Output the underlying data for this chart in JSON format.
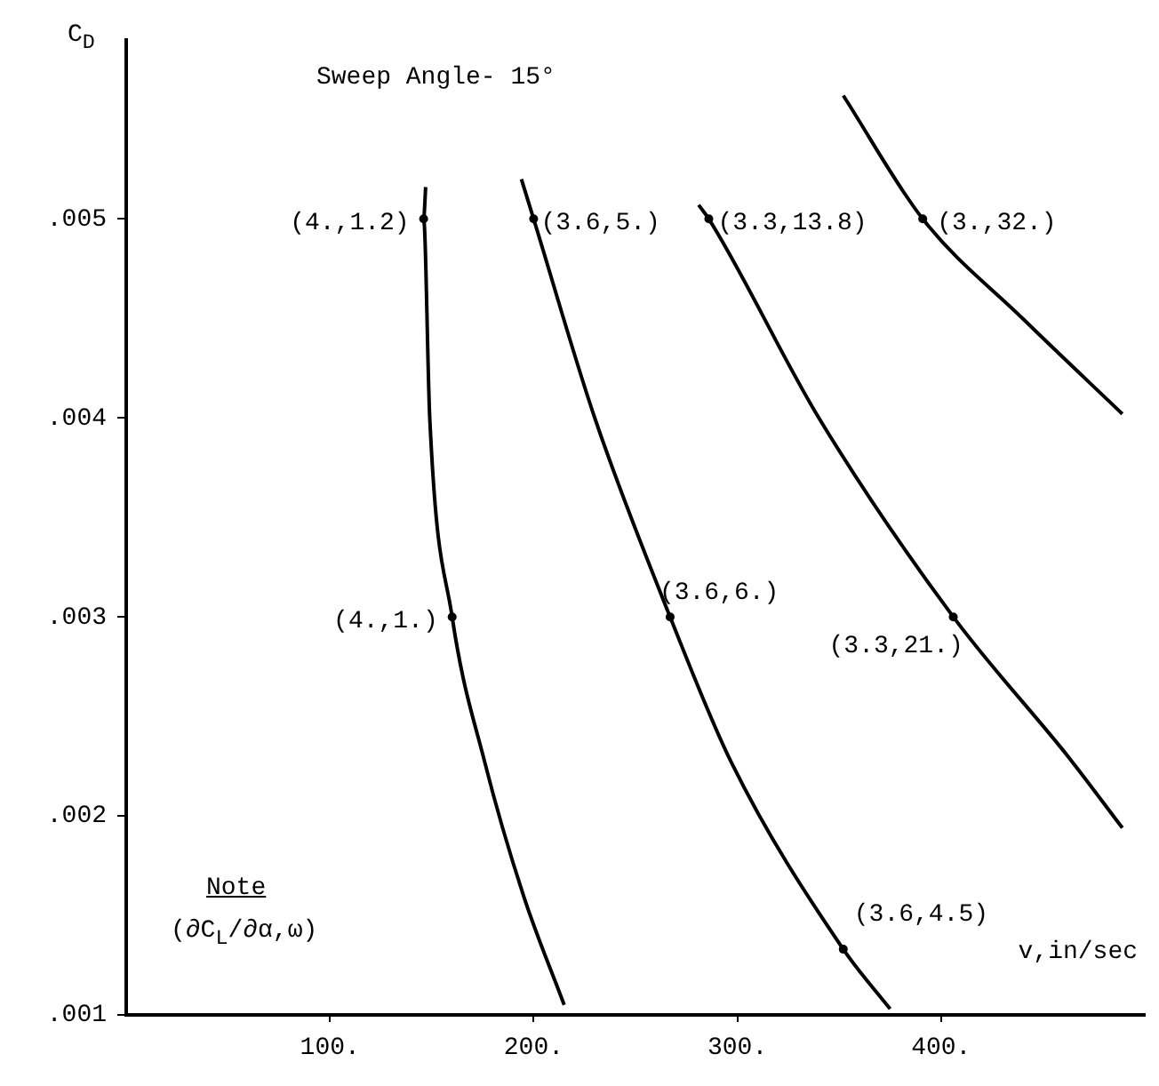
{
  "chart_data": {
    "type": "line",
    "xlabel": "v,in/sec",
    "ylabel": "C$_{D}$",
    "xlim": [
      0,
      500
    ],
    "xticks": [
      {
        "value": 100,
        "label": "100."
      },
      {
        "value": 200,
        "label": "200."
      },
      {
        "value": 300,
        "label": "300."
      },
      {
        "value": 400,
        "label": "400."
      }
    ],
    "ylim": [
      0.001,
      0.0059
    ],
    "yticks": [
      {
        "value": 0.001,
        "label": ".001"
      },
      {
        "value": 0.002,
        "label": ".002"
      },
      {
        "value": 0.003,
        "label": ".003"
      },
      {
        "value": 0.004,
        "label": ".004"
      },
      {
        "value": 0.005,
        "label": ".005"
      }
    ],
    "grid": false,
    "legend": false,
    "marker": "none",
    "line_style": "solid",
    "series": [
      {
        "color": "#000000",
        "x": [
          147,
          146,
          149,
          160,
          176,
          195,
          215
        ],
        "values": [
          0.00516,
          0.005,
          0.004,
          0.003,
          0.00227,
          0.0016,
          0.00105
        ]
      },
      {
        "color": "#000000",
        "x": [
          194,
          200,
          230,
          267,
          297,
          352,
          375
        ],
        "values": [
          0.0052,
          0.005,
          0.004,
          0.003,
          0.00227,
          0.00133,
          0.00103
        ]
      },
      {
        "color": "#000000",
        "x": [
          281,
          286,
          340,
          406,
          463,
          489
        ],
        "values": [
          0.00507,
          0.005,
          0.004,
          0.003,
          0.00229,
          0.00194
        ]
      },
      {
        "color": "#000000",
        "x": [
          352,
          391,
          440,
          489
        ],
        "values": [
          0.00562,
          0.005,
          0.0045,
          0.00402
        ]
      }
    ],
    "annotations": [
      "Sweep Angle- 15°",
      "Note",
      "(∂C$_{L}$/∂α,ω)",
      {
        "text": "(4.,1.2)",
        "x": 146,
        "y": 0.005
      },
      {
        "text": "(3.6,5.)",
        "x": 200,
        "y": 0.005
      },
      {
        "text": "(3.3,13.8)",
        "x": 286,
        "y": 0.005
      },
      {
        "text": "(3.,32.)",
        "x": 391,
        "y": 0.005
      },
      {
        "text": "(4.,1.)",
        "x": 160,
        "y": 0.003
      },
      {
        "text": "(3.6,6.)",
        "x": 267,
        "y": 0.003
      },
      {
        "text": "(3.3,21.)",
        "x": 406,
        "y": 0.003
      },
      {
        "text": "(3.6,4.5)",
        "x": 352,
        "y": 0.00133
      }
    ]
  }
}
